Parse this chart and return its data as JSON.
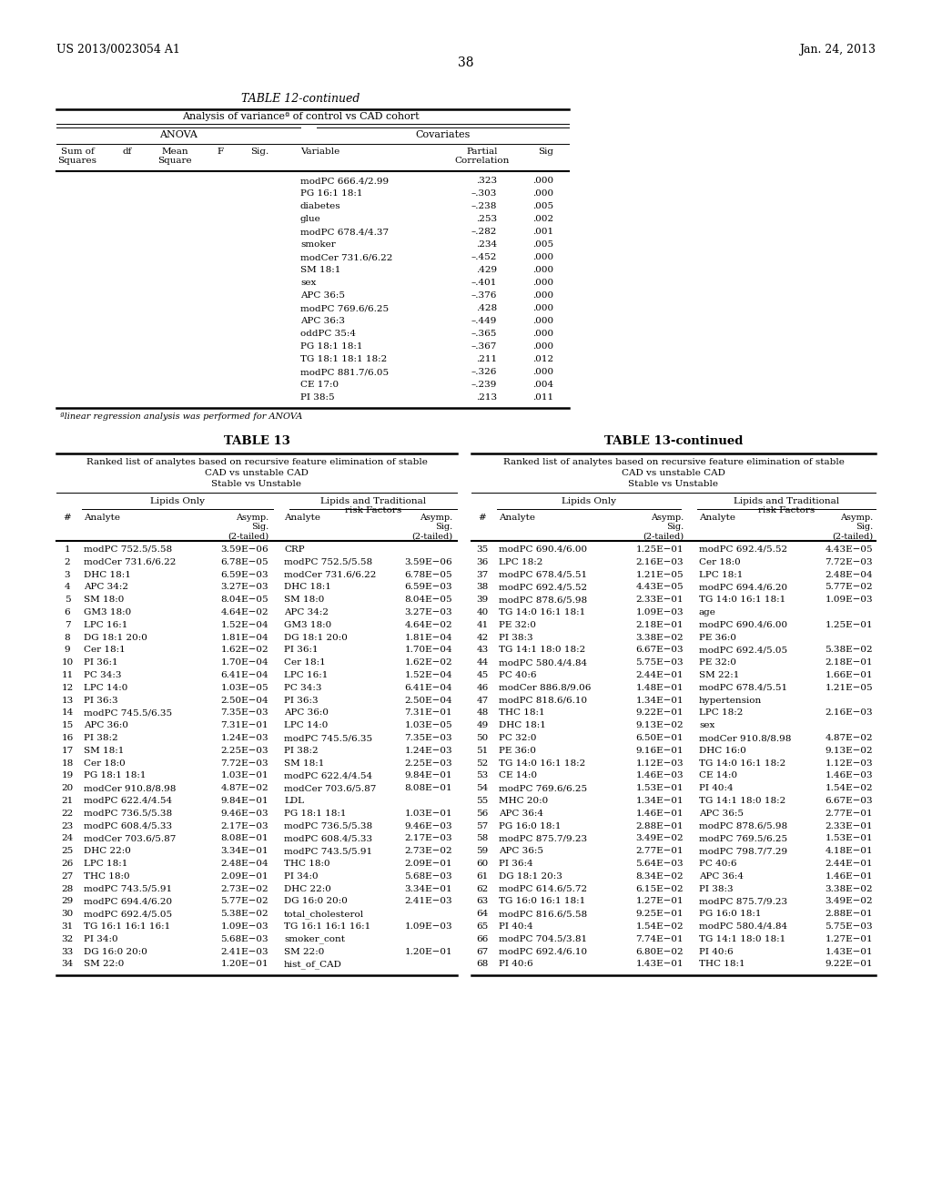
{
  "page_header_left": "US 2013/0023054 A1",
  "page_header_right": "Jan. 24, 2013",
  "page_number": "38",
  "table12_title": "TABLE 12-continued",
  "table12_subtitle": "Analysis of varianceª of control vs CAD cohort",
  "table12_anova_header": "ANOVA",
  "table12_cov_header": "Covariates",
  "table12_col_headers": [
    "Sum of\nSquares",
    "df",
    "Mean\nSquare",
    "F",
    "Sig.",
    "Variable",
    "Partial\nCorrelation",
    "Sig"
  ],
  "table12_rows": [
    [
      "",
      "",
      "",
      "",
      "",
      "modPC 666.4/2.99",
      ".323",
      ".000"
    ],
    [
      "",
      "",
      "",
      "",
      "",
      "PG 16:1 18:1",
      "–.303",
      ".000"
    ],
    [
      "",
      "",
      "",
      "",
      "",
      "diabetes",
      "–.238",
      ".005"
    ],
    [
      "",
      "",
      "",
      "",
      "",
      "glue",
      ".253",
      ".002"
    ],
    [
      "",
      "",
      "",
      "",
      "",
      "modPC 678.4/4.37",
      "–.282",
      ".001"
    ],
    [
      "",
      "",
      "",
      "",
      "",
      "smoker",
      ".234",
      ".005"
    ],
    [
      "",
      "",
      "",
      "",
      "",
      "modCer 731.6/6.22",
      "–.452",
      ".000"
    ],
    [
      "",
      "",
      "",
      "",
      "",
      "SM 18:1",
      ".429",
      ".000"
    ],
    [
      "",
      "",
      "",
      "",
      "",
      "sex",
      "–.401",
      ".000"
    ],
    [
      "",
      "",
      "",
      "",
      "",
      "APC 36:5",
      "–.376",
      ".000"
    ],
    [
      "",
      "",
      "",
      "",
      "",
      "modPC 769.6/6.25",
      ".428",
      ".000"
    ],
    [
      "",
      "",
      "",
      "",
      "",
      "APC 36:3",
      "–.449",
      ".000"
    ],
    [
      "",
      "",
      "",
      "",
      "",
      "oddPC 35:4",
      "–.365",
      ".000"
    ],
    [
      "",
      "",
      "",
      "",
      "",
      "PG 18:1 18:1",
      "–.367",
      ".000"
    ],
    [
      "",
      "",
      "",
      "",
      "",
      "TG 18:1 18:1 18:2",
      ".211",
      ".012"
    ],
    [
      "",
      "",
      "",
      "",
      "",
      "modPC 881.7/6.05",
      "–.326",
      ".000"
    ],
    [
      "",
      "",
      "",
      "",
      "",
      "CE 17:0",
      "–.239",
      ".004"
    ],
    [
      "",
      "",
      "",
      "",
      "",
      "PI 38:5",
      ".213",
      ".011"
    ]
  ],
  "table12_footnote": "ªlinear regression analysis was performed for ANOVA",
  "table13_title": "TABLE 13",
  "table13_title2": "TABLE 13-continued",
  "table13_subtitle_lines": [
    "Ranked list of analytes based on recursive feature elimination of stable",
    "CAD vs unstable CAD",
    "Stable vs Unstable"
  ],
  "table13_left_rows": [
    [
      "1",
      "modPC 752.5/5.58",
      "3.59E−06",
      "CRP",
      ""
    ],
    [
      "2",
      "modCer 731.6/6.22",
      "6.78E−05",
      "modPC 752.5/5.58",
      "3.59E−06"
    ],
    [
      "3",
      "DHC 18:1",
      "6.59E−03",
      "modCer 731.6/6.22",
      "6.78E−05"
    ],
    [
      "4",
      "APC 34:2",
      "3.27E−03",
      "DHC 18:1",
      "6.59E−03"
    ],
    [
      "5",
      "SM 18:0",
      "8.04E−05",
      "SM 18:0",
      "8.04E−05"
    ],
    [
      "6",
      "GM3 18:0",
      "4.64E−02",
      "APC 34:2",
      "3.27E−03"
    ],
    [
      "7",
      "LPC 16:1",
      "1.52E−04",
      "GM3 18:0",
      "4.64E−02"
    ],
    [
      "8",
      "DG 18:1 20:0",
      "1.81E−04",
      "DG 18:1 20:0",
      "1.81E−04"
    ],
    [
      "9",
      "Cer 18:1",
      "1.62E−02",
      "PI 36:1",
      "1.70E−04"
    ],
    [
      "10",
      "PI 36:1",
      "1.70E−04",
      "Cer 18:1",
      "1.62E−02"
    ],
    [
      "11",
      "PC 34:3",
      "6.41E−04",
      "LPC 16:1",
      "1.52E−04"
    ],
    [
      "12",
      "LPC 14:0",
      "1.03E−05",
      "PC 34:3",
      "6.41E−04"
    ],
    [
      "13",
      "PI 36:3",
      "2.50E−04",
      "PI 36:3",
      "2.50E−04"
    ],
    [
      "14",
      "modPC 745.5/6.35",
      "7.35E−03",
      "APC 36:0",
      "7.31E−01"
    ],
    [
      "15",
      "APC 36:0",
      "7.31E−01",
      "LPC 14:0",
      "1.03E−05"
    ],
    [
      "16",
      "PI 38:2",
      "1.24E−03",
      "modPC 745.5/6.35",
      "7.35E−03"
    ],
    [
      "17",
      "SM 18:1",
      "2.25E−03",
      "PI 38:2",
      "1.24E−03"
    ],
    [
      "18",
      "Cer 18:0",
      "7.72E−03",
      "SM 18:1",
      "2.25E−03"
    ],
    [
      "19",
      "PG 18:1 18:1",
      "1.03E−01",
      "modPC 622.4/4.54",
      "9.84E−01"
    ],
    [
      "20",
      "modCer 910.8/8.98",
      "4.87E−02",
      "modCer 703.6/5.87",
      "8.08E−01"
    ],
    [
      "21",
      "modPC 622.4/4.54",
      "9.84E−01",
      "LDL",
      ""
    ],
    [
      "22",
      "modPC 736.5/5.38",
      "9.46E−03",
      "PG 18:1 18:1",
      "1.03E−01"
    ],
    [
      "23",
      "modPC 608.4/5.33",
      "2.17E−03",
      "modPC 736.5/5.38",
      "9.46E−03"
    ],
    [
      "24",
      "modCer 703.6/5.87",
      "8.08E−01",
      "modPC 608.4/5.33",
      "2.17E−03"
    ],
    [
      "25",
      "DHC 22:0",
      "3.34E−01",
      "modPC 743.5/5.91",
      "2.73E−02"
    ],
    [
      "26",
      "LPC 18:1",
      "2.48E−04",
      "THC 18:0",
      "2.09E−01"
    ],
    [
      "27",
      "THC 18:0",
      "2.09E−01",
      "PI 34:0",
      "5.68E−03"
    ],
    [
      "28",
      "modPC 743.5/5.91",
      "2.73E−02",
      "DHC 22:0",
      "3.34E−01"
    ],
    [
      "29",
      "modPC 694.4/6.20",
      "5.77E−02",
      "DG 16:0 20:0",
      "2.41E−03"
    ],
    [
      "30",
      "modPC 692.4/5.05",
      "5.38E−02",
      "total_cholesterol",
      ""
    ],
    [
      "31",
      "TG 16:1 16:1 16:1",
      "1.09E−03",
      "TG 16:1 16:1 16:1",
      "1.09E−03"
    ],
    [
      "32",
      "PI 34:0",
      "5.68E−03",
      "smoker_cont",
      ""
    ],
    [
      "33",
      "DG 16:0 20:0",
      "2.41E−03",
      "SM 22:0",
      "1.20E−01"
    ],
    [
      "34",
      "SM 22:0",
      "1.20E−01",
      "hist_of_CAD",
      ""
    ]
  ],
  "table13_right_rows": [
    [
      "35",
      "modPC 690.4/6.00",
      "1.25E−01",
      "modPC 692.4/5.52",
      "4.43E−05"
    ],
    [
      "36",
      "LPC 18:2",
      "2.16E−03",
      "Cer 18:0",
      "7.72E−03"
    ],
    [
      "37",
      "modPC 678.4/5.51",
      "1.21E−05",
      "LPC 18:1",
      "2.48E−04"
    ],
    [
      "38",
      "modPC 692.4/5.52",
      "4.43E−05",
      "modPC 694.4/6.20",
      "5.77E−02"
    ],
    [
      "39",
      "modPC 878.6/5.98",
      "2.33E−01",
      "TG 14:0 16:1 18:1",
      "1.09E−03"
    ],
    [
      "40",
      "TG 14:0 16:1 18:1",
      "1.09E−03",
      "age",
      ""
    ],
    [
      "41",
      "PE 32:0",
      "2.18E−01",
      "modPC 690.4/6.00",
      "1.25E−01"
    ],
    [
      "42",
      "PI 38:3",
      "3.38E−02",
      "PE 36:0",
      ""
    ],
    [
      "43",
      "TG 14:1 18:0 18:2",
      "6.67E−03",
      "modPC 692.4/5.05",
      "5.38E−02"
    ],
    [
      "44",
      "modPC 580.4/4.84",
      "5.75E−03",
      "PE 32:0",
      "2.18E−01"
    ],
    [
      "45",
      "PC 40:6",
      "2.44E−01",
      "SM 22:1",
      "1.66E−01"
    ],
    [
      "46",
      "modCer 886.8/9.06",
      "1.48E−01",
      "modPC 678.4/5.51",
      "1.21E−05"
    ],
    [
      "47",
      "modPC 818.6/6.10",
      "1.34E−01",
      "hypertension",
      ""
    ],
    [
      "48",
      "THC 18:1",
      "9.22E−01",
      "LPC 18:2",
      "2.16E−03"
    ],
    [
      "49",
      "DHC 18:1",
      "9.13E−02",
      "sex",
      ""
    ],
    [
      "50",
      "PC 32:0",
      "6.50E−01",
      "modCer 910.8/8.98",
      "4.87E−02"
    ],
    [
      "51",
      "PE 36:0",
      "9.16E−01",
      "DHC 16:0",
      "9.13E−02"
    ],
    [
      "52",
      "TG 14:0 16:1 18:2",
      "1.12E−03",
      "TG 14:0 16:1 18:2",
      "1.12E−03"
    ],
    [
      "53",
      "CE 14:0",
      "1.46E−03",
      "CE 14:0",
      "1.46E−03"
    ],
    [
      "54",
      "modPC 769.6/6.25",
      "1.53E−01",
      "PI 40:4",
      "1.54E−02"
    ],
    [
      "55",
      "MHC 20:0",
      "1.34E−01",
      "TG 14:1 18:0 18:2",
      "6.67E−03"
    ],
    [
      "56",
      "APC 36:4",
      "1.46E−01",
      "APC 36:5",
      "2.77E−01"
    ],
    [
      "57",
      "PG 16:0 18:1",
      "2.88E−01",
      "modPC 878.6/5.98",
      "2.33E−01"
    ],
    [
      "58",
      "modPC 875.7/9.23",
      "3.49E−02",
      "modPC 769.5/6.25",
      "1.53E−01"
    ],
    [
      "59",
      "APC 36:5",
      "2.77E−01",
      "modPC 798.7/7.29",
      "4.18E−01"
    ],
    [
      "60",
      "PI 36:4",
      "5.64E−03",
      "PC 40:6",
      "2.44E−01"
    ],
    [
      "61",
      "DG 18:1 20:3",
      "8.34E−02",
      "APC 36:4",
      "1.46E−01"
    ],
    [
      "62",
      "modPC 614.6/5.72",
      "6.15E−02",
      "PI 38:3",
      "3.38E−02"
    ],
    [
      "63",
      "TG 16:0 16:1 18:1",
      "1.27E−01",
      "modPC 875.7/9.23",
      "3.49E−02"
    ],
    [
      "64",
      "modPC 816.6/5.58",
      "9.25E−01",
      "PG 16:0 18:1",
      "2.88E−01"
    ],
    [
      "65",
      "PI 40:4",
      "1.54E−02",
      "modPC 580.4/4.84",
      "5.75E−03"
    ],
    [
      "66",
      "modPC 704.5/3.81",
      "7.74E−01",
      "TG 14:1 18:0 18:1",
      "1.27E−01"
    ],
    [
      "67",
      "modPC 692.4/6.10",
      "6.80E−02",
      "PI 40:6",
      "1.43E−01"
    ],
    [
      "68",
      "PI 40:6",
      "1.43E−01",
      "THC 18:1",
      "9.22E−01"
    ]
  ]
}
